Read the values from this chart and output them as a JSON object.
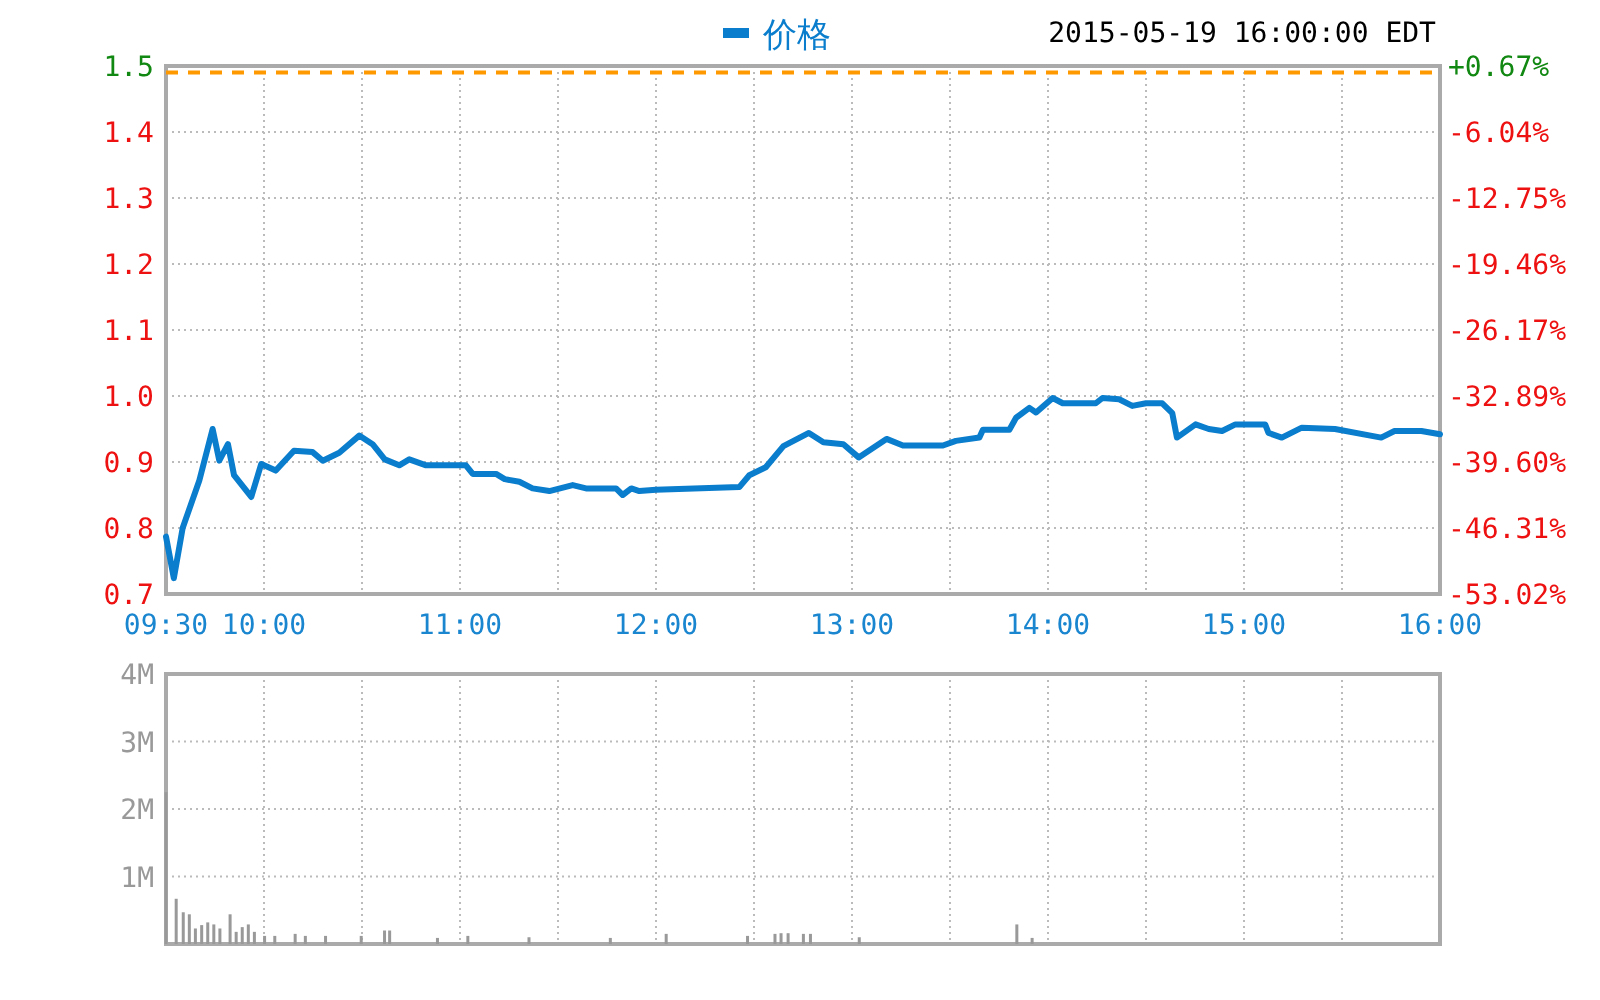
{
  "chart_data": [
    {
      "type": "line",
      "subtitle": "2015-05-19 16:00:00 EDT",
      "series": [
        {
          "name": "价格",
          "color": "#0a7dcc",
          "x": [
            9.5,
            9.54,
            9.585,
            9.67,
            9.738,
            9.772,
            9.816,
            9.847,
            9.935,
            9.986,
            10.06,
            10.153,
            10.248,
            10.3,
            10.384,
            10.486,
            10.554,
            10.616,
            10.69,
            10.741,
            10.827,
            11.03,
            11.065,
            11.184,
            11.228,
            11.303,
            11.37,
            11.456,
            11.575,
            11.643,
            11.796,
            11.83,
            11.874,
            11.915,
            12.0,
            12.425,
            12.476,
            12.56,
            12.65,
            12.78,
            12.854,
            12.956,
            13.034,
            13.176,
            13.26,
            13.464,
            13.53,
            13.65,
            13.668,
            13.803,
            13.837,
            13.905,
            13.939,
            14.024,
            14.075,
            14.244,
            14.278,
            14.363,
            14.43,
            14.5,
            14.583,
            14.634,
            14.658,
            14.753,
            14.82,
            14.888,
            14.956,
            15.108,
            15.125,
            15.193,
            15.295,
            15.464,
            15.7,
            15.768,
            15.905,
            16.0
          ],
          "values": [
            0.787,
            0.724,
            0.8,
            0.872,
            0.95,
            0.902,
            0.927,
            0.88,
            0.847,
            0.897,
            0.887,
            0.917,
            0.915,
            0.902,
            0.914,
            0.94,
            0.927,
            0.904,
            0.895,
            0.904,
            0.895,
            0.895,
            0.882,
            0.882,
            0.874,
            0.87,
            0.86,
            0.856,
            0.865,
            0.86,
            0.86,
            0.85,
            0.86,
            0.856,
            0.858,
            0.862,
            0.88,
            0.892,
            0.924,
            0.944,
            0.93,
            0.927,
            0.907,
            0.935,
            0.925,
            0.925,
            0.932,
            0.937,
            0.949,
            0.949,
            0.967,
            0.982,
            0.975,
            0.997,
            0.989,
            0.989,
            0.997,
            0.995,
            0.985,
            0.989,
            0.989,
            0.974,
            0.937,
            0.957,
            0.95,
            0.947,
            0.957,
            0.957,
            0.944,
            0.937,
            0.952,
            0.95,
            0.937,
            0.947,
            0.947,
            0.942
          ]
        }
      ],
      "xlim": [
        9.5,
        16
      ],
      "xticks": [
        {
          "value": 9.5,
          "label": "09:30"
        },
        {
          "value": 10,
          "label": "10:00"
        },
        {
          "value": 10.5,
          "label": null
        },
        {
          "value": 11,
          "label": "11:00"
        },
        {
          "value": 11.5,
          "label": null
        },
        {
          "value": 12,
          "label": "12:00"
        },
        {
          "value": 12.5,
          "label": null
        },
        {
          "value": 13,
          "label": "13:00"
        },
        {
          "value": 13.5,
          "label": null
        },
        {
          "value": 14,
          "label": "14:00"
        },
        {
          "value": 14.5,
          "label": null
        },
        {
          "value": 15,
          "label": "15:00"
        },
        {
          "value": 15.5,
          "label": null
        },
        {
          "value": 16,
          "label": "16:00"
        }
      ],
      "ylim": [
        0.7,
        1.5
      ],
      "yticks": [
        {
          "value": 0.7,
          "label": "0.7"
        },
        {
          "value": 0.8,
          "label": "0.8"
        },
        {
          "value": 0.9,
          "label": "0.9"
        },
        {
          "value": 1.0,
          "label": "1.0"
        },
        {
          "value": 1.1,
          "label": "1.1"
        },
        {
          "value": 1.2,
          "label": "1.2"
        },
        {
          "value": 1.3,
          "label": "1.3"
        },
        {
          "value": 1.4,
          "label": "1.4"
        },
        {
          "value": 1.5,
          "label": "1.5"
        }
      ],
      "y2lim": [
        -53.02,
        0.67
      ],
      "y2ticks": [
        {
          "value": -53.02,
          "label": "-53.02%"
        },
        {
          "value": -46.31,
          "label": "-46.31%"
        },
        {
          "value": -39.6,
          "label": "-39.60%"
        },
        {
          "value": -32.89,
          "label": "-32.89%"
        },
        {
          "value": -26.17,
          "label": "-26.17%"
        },
        {
          "value": -19.46,
          "label": "-19.46%"
        },
        {
          "value": -12.75,
          "label": "-12.75%"
        },
        {
          "value": -6.04,
          "label": "-6.04%"
        },
        {
          "value": 0.67,
          "label": "+0.67%"
        }
      ],
      "ref_lines": [
        {
          "axis": "y",
          "value": 1.49,
          "color": "#ff9900",
          "line_style": "dashed"
        }
      ],
      "grid": true,
      "legend": "top"
    },
    {
      "type": "bar",
      "color": "#999999",
      "x": [
        9.5,
        9.552,
        9.588,
        9.619,
        9.65,
        9.682,
        9.713,
        9.744,
        9.775,
        9.827,
        9.858,
        9.889,
        9.92,
        9.951,
        10.003,
        10.055,
        10.159,
        10.211,
        10.314,
        10.496,
        10.615,
        10.641,
        10.885,
        11.04,
        11.352,
        11.767,
        12.052,
        12.467,
        12.607,
        12.638,
        12.674,
        12.752,
        12.788,
        13.037,
        13.841,
        13.919
      ],
      "values": [
        2.25,
        0.67,
        0.47,
        0.44,
        0.23,
        0.28,
        0.32,
        0.29,
        0.23,
        0.44,
        0.18,
        0.25,
        0.29,
        0.18,
        0.12,
        0.12,
        0.15,
        0.12,
        0.12,
        0.12,
        0.2,
        0.2,
        0.09,
        0.12,
        0.1,
        0.09,
        0.15,
        0.12,
        0.15,
        0.16,
        0.16,
        0.15,
        0.15,
        0.1,
        0.29,
        0.09
      ],
      "xlim": [
        9.5,
        16
      ],
      "xticks": [
        {
          "value": 9.5,
          "label": null
        },
        {
          "value": 10,
          "label": null
        },
        {
          "value": 10.5,
          "label": null
        },
        {
          "value": 11,
          "label": null
        },
        {
          "value": 11.5,
          "label": null
        },
        {
          "value": 12,
          "label": null
        },
        {
          "value": 12.5,
          "label": null
        },
        {
          "value": 13,
          "label": null
        },
        {
          "value": 13.5,
          "label": null
        },
        {
          "value": 14,
          "label": null
        },
        {
          "value": 14.5,
          "label": null
        },
        {
          "value": 15,
          "label": null
        },
        {
          "value": 15.5,
          "label": null
        },
        {
          "value": 16,
          "label": null
        }
      ],
      "ylim": [
        0,
        4
      ],
      "yticks": [
        {
          "value": 0,
          "label": null
        },
        {
          "value": 1,
          "label": "1M"
        },
        {
          "value": 2,
          "label": "2M"
        },
        {
          "value": 3,
          "label": "3M"
        },
        {
          "value": 4,
          "label": "4M"
        }
      ],
      "tick_labels": "y",
      "grid": true
    }
  ]
}
